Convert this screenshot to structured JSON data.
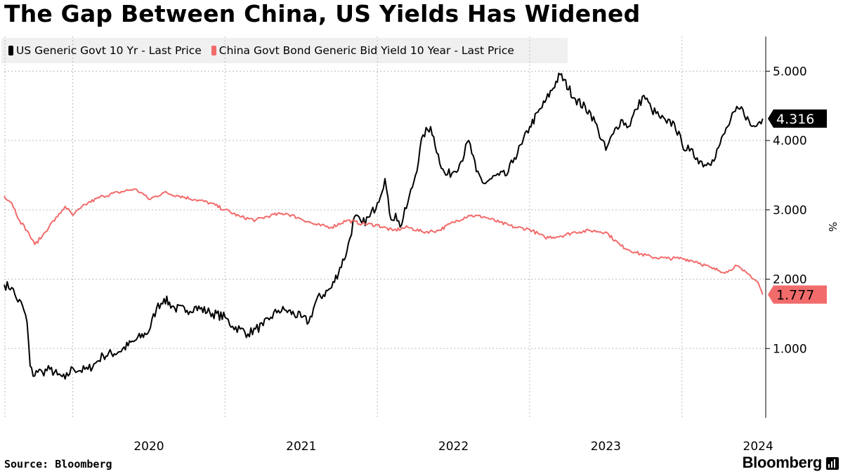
{
  "title": "The Gap Between China, US Yields Has Widened",
  "source": "Source: Bloomberg",
  "brand": "Bloomberg",
  "brand_icon": "bar-chart-icon",
  "colors": {
    "us": "#000000",
    "china": "#f26b6b",
    "grid": "#bdbdbd"
  },
  "chart_data": {
    "type": "line",
    "title": "The Gap Between China, US Yields Has Widened",
    "ylabel": "%",
    "ylim": [
      0.0,
      5.5
    ],
    "xlim": [
      2019.55,
      2024.55
    ],
    "y_ticks": [
      1.0,
      2.0,
      3.0,
      4.0,
      5.0
    ],
    "y_tick_labels": [
      "1.000",
      "2.000",
      "3.000",
      "4.000",
      "5.000"
    ],
    "x_gridlines": [
      2020,
      2021,
      2022,
      2023,
      2024
    ],
    "x_tick_positions": [
      2020.5,
      2021.5,
      2022.5,
      2023.5,
      2024.5
    ],
    "x_tick_labels": [
      "2020",
      "2021",
      "2022",
      "2023",
      "2024"
    ],
    "grid": true,
    "legend_position": "top-left",
    "series": [
      {
        "name": "US Generic Govt 10 Yr - Last Price",
        "last_value_label": "4.316",
        "x": [
          2019.55,
          2019.6,
          2019.63,
          2019.67,
          2019.7,
          2019.72,
          2019.74,
          2019.76,
          2019.8,
          2019.85,
          2019.9,
          2019.95,
          2020.0,
          2020.05,
          2020.1,
          2020.15,
          2020.2,
          2020.3,
          2020.4,
          2020.5,
          2020.55,
          2020.6,
          2020.67,
          2020.75,
          2020.8,
          2020.9,
          2021.0,
          2021.05,
          2021.1,
          2021.15,
          2021.2,
          2021.25,
          2021.3,
          2021.35,
          2021.4,
          2021.5,
          2021.55,
          2021.6,
          2021.7,
          2021.8,
          2021.85,
          2021.9,
          2021.95,
          2022.0,
          2022.05,
          2022.08,
          2022.1,
          2022.12,
          2022.15,
          2022.2,
          2022.25,
          2022.3,
          2022.35,
          2022.4,
          2022.42,
          2022.45,
          2022.5,
          2022.55,
          2022.6,
          2022.65,
          2022.7,
          2022.75,
          2022.8,
          2022.85,
          2022.9,
          2022.95,
          2023.0,
          2023.1,
          2023.2,
          2023.3,
          2023.4,
          2023.45,
          2023.5,
          2023.55,
          2023.6,
          2023.65,
          2023.7,
          2023.75,
          2023.8,
          2023.85,
          2023.9,
          2023.95,
          2024.0,
          2024.05,
          2024.1,
          2024.15,
          2024.2,
          2024.25,
          2024.3,
          2024.35,
          2024.4,
          2024.45,
          2024.48,
          2024.5,
          2024.53
        ],
        "values": [
          1.92,
          1.88,
          1.72,
          1.62,
          1.38,
          0.75,
          0.6,
          0.68,
          0.66,
          0.7,
          0.62,
          0.56,
          0.72,
          0.68,
          0.7,
          0.79,
          0.9,
          0.95,
          1.1,
          1.25,
          1.58,
          1.72,
          1.58,
          1.55,
          1.6,
          1.52,
          1.45,
          1.32,
          1.28,
          1.21,
          1.28,
          1.33,
          1.45,
          1.55,
          1.55,
          1.45,
          1.38,
          1.7,
          1.88,
          2.4,
          2.9,
          2.8,
          2.9,
          3.1,
          3.45,
          2.95,
          2.85,
          2.95,
          2.75,
          3.1,
          3.5,
          4.08,
          4.2,
          3.8,
          3.6,
          3.5,
          3.55,
          3.7,
          4.0,
          3.55,
          3.38,
          3.45,
          3.5,
          3.5,
          3.75,
          3.95,
          4.2,
          4.55,
          4.95,
          4.6,
          4.4,
          4.15,
          3.86,
          4.1,
          4.3,
          4.2,
          4.45,
          4.65,
          4.45,
          4.35,
          4.25,
          4.25,
          3.95,
          3.85,
          3.75,
          3.65,
          3.72,
          3.95,
          4.2,
          4.42,
          4.45,
          4.22,
          4.2,
          4.25,
          4.316
        ]
      },
      {
        "name": "China Govt Bond Generic Bid Yield 10 Year - Last Price",
        "last_value_label": "1.777",
        "x": [
          2019.55,
          2019.6,
          2019.65,
          2019.7,
          2019.75,
          2019.8,
          2019.85,
          2019.9,
          2019.95,
          2020.0,
          2020.05,
          2020.1,
          2020.2,
          2020.3,
          2020.4,
          2020.45,
          2020.5,
          2020.6,
          2020.7,
          2020.8,
          2020.9,
          2021.0,
          2021.1,
          2021.2,
          2021.3,
          2021.4,
          2021.5,
          2021.6,
          2021.7,
          2021.8,
          2021.9,
          2022.0,
          2022.1,
          2022.2,
          2022.3,
          2022.4,
          2022.5,
          2022.6,
          2022.7,
          2022.8,
          2022.9,
          2023.0,
          2023.1,
          2023.2,
          2023.3,
          2023.4,
          2023.5,
          2023.6,
          2023.7,
          2023.8,
          2023.9,
          2024.0,
          2024.1,
          2024.2,
          2024.3,
          2024.35,
          2024.4,
          2024.45,
          2024.5,
          2024.53
        ],
        "values": [
          3.2,
          3.1,
          2.85,
          2.7,
          2.5,
          2.62,
          2.78,
          2.9,
          3.05,
          2.92,
          3.02,
          3.1,
          3.2,
          3.25,
          3.3,
          3.25,
          3.15,
          3.25,
          3.2,
          3.15,
          3.1,
          3.0,
          2.9,
          2.85,
          2.92,
          2.95,
          2.87,
          2.78,
          2.75,
          2.85,
          2.8,
          2.78,
          2.7,
          2.75,
          2.68,
          2.7,
          2.82,
          2.92,
          2.9,
          2.82,
          2.75,
          2.72,
          2.6,
          2.62,
          2.68,
          2.7,
          2.68,
          2.48,
          2.38,
          2.32,
          2.3,
          2.3,
          2.25,
          2.15,
          2.1,
          2.2,
          2.12,
          2.05,
          1.95,
          1.777
        ]
      }
    ]
  }
}
